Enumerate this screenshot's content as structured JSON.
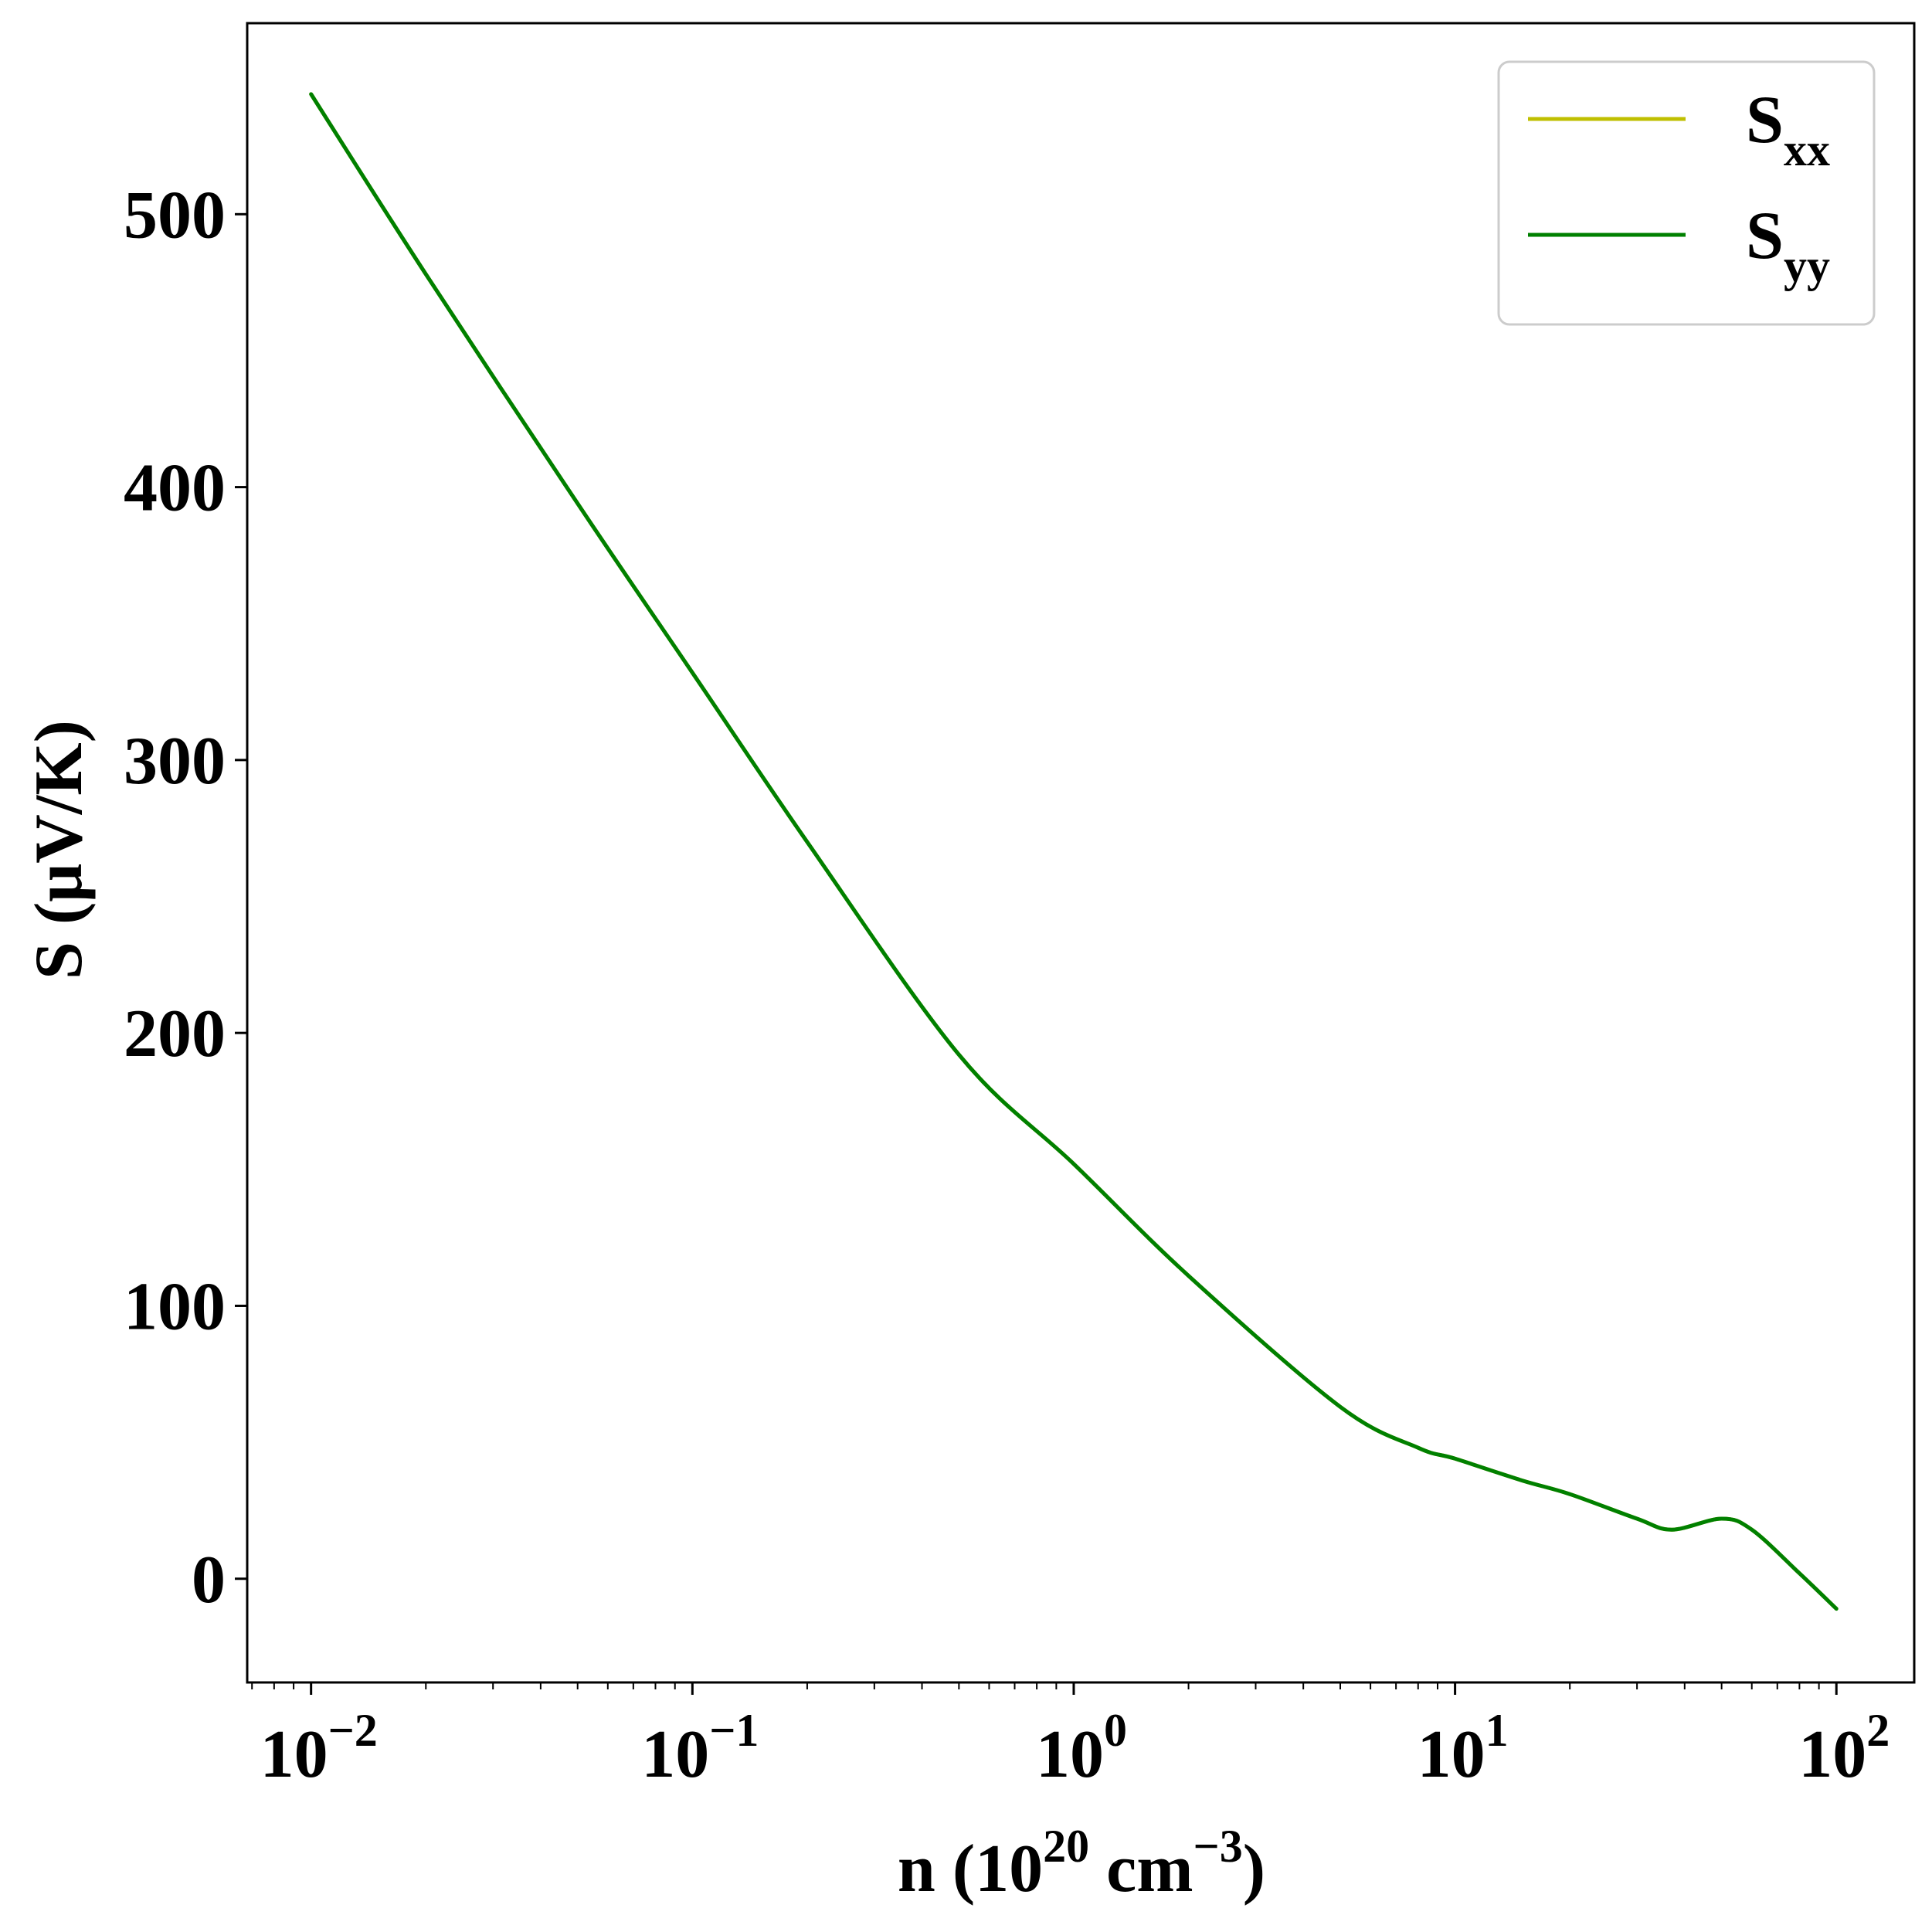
{
  "chart_data": {
    "type": "line",
    "xscale": "log",
    "xlim": [
      0.0068,
      160
    ],
    "ylim": [
      -38,
      570
    ],
    "grid": false,
    "legend_position": "top-right",
    "xlabel": {
      "base": "n (10",
      "exp1": "20",
      "mid": " cm",
      "exp2": "−3",
      "tail": ")"
    },
    "ylabel": "S (μV/K)",
    "yticks": [
      {
        "value": 0,
        "label": "0"
      },
      {
        "value": 100,
        "label": "100"
      },
      {
        "value": 200,
        "label": "200"
      },
      {
        "value": 300,
        "label": "300"
      },
      {
        "value": 400,
        "label": "400"
      },
      {
        "value": 500,
        "label": "500"
      }
    ],
    "xticks": [
      {
        "value": 0.01,
        "base": "10",
        "exp": "−2"
      },
      {
        "value": 0.1,
        "base": "10",
        "exp": "−1"
      },
      {
        "value": 1,
        "base": "10",
        "exp": "0"
      },
      {
        "value": 10,
        "base": "10",
        "exp": "1"
      },
      {
        "value": 100,
        "base": "10",
        "exp": "2"
      }
    ],
    "series": [
      {
        "name": "xx",
        "legend": {
          "main": "S",
          "sub": "xx"
        },
        "color": "#bfbf00",
        "x": [
          0.01,
          0.02,
          0.05,
          0.1,
          0.2,
          0.5,
          1,
          2,
          5,
          8,
          10,
          15,
          20,
          30,
          37,
          50,
          60,
          80,
          100
        ],
        "y": [
          544,
          478,
          394,
          332,
          270,
          192,
          152,
          111,
          63,
          48,
          44,
          36,
          31,
          22,
          18,
          22,
          18,
          2,
          -11
        ]
      },
      {
        "name": "yy",
        "legend": {
          "main": "S",
          "sub": "yy"
        },
        "color": "#008000",
        "x": [
          0.01,
          0.02,
          0.05,
          0.1,
          0.2,
          0.5,
          1,
          2,
          5,
          8,
          10,
          15,
          20,
          30,
          37,
          50,
          60,
          80,
          100
        ],
        "y": [
          544,
          478,
          394,
          332,
          270,
          192,
          152,
          111,
          63,
          48,
          44,
          36,
          31,
          22,
          18,
          22,
          18,
          2,
          -11
        ]
      }
    ]
  }
}
